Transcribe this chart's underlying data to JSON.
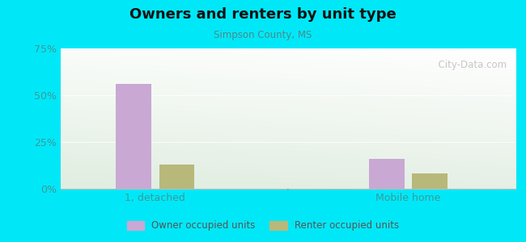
{
  "title": "Owners and renters by unit type",
  "subtitle": "Simpson County, MS",
  "categories": [
    "1, detached",
    "Mobile home"
  ],
  "owner_values": [
    56,
    16
  ],
  "renter_values": [
    13,
    8
  ],
  "owner_color": "#c9a8d4",
  "renter_color": "#b8b87a",
  "ylim": [
    0,
    75
  ],
  "yticks": [
    0,
    25,
    50,
    75
  ],
  "ytick_labels": [
    "0%",
    "25%",
    "50%",
    "75%"
  ],
  "background_outer": "#00e8f8",
  "watermark": "  City-Data.com",
  "legend_owner": "Owner occupied units",
  "legend_renter": "Renter occupied units",
  "bar_width": 0.28,
  "group_positions": [
    0.75,
    2.75
  ],
  "xlim": [
    0,
    3.6
  ],
  "tick_label_color": "#3a9a9a",
  "title_color": "#111111",
  "subtitle_color": "#4a8a8a"
}
